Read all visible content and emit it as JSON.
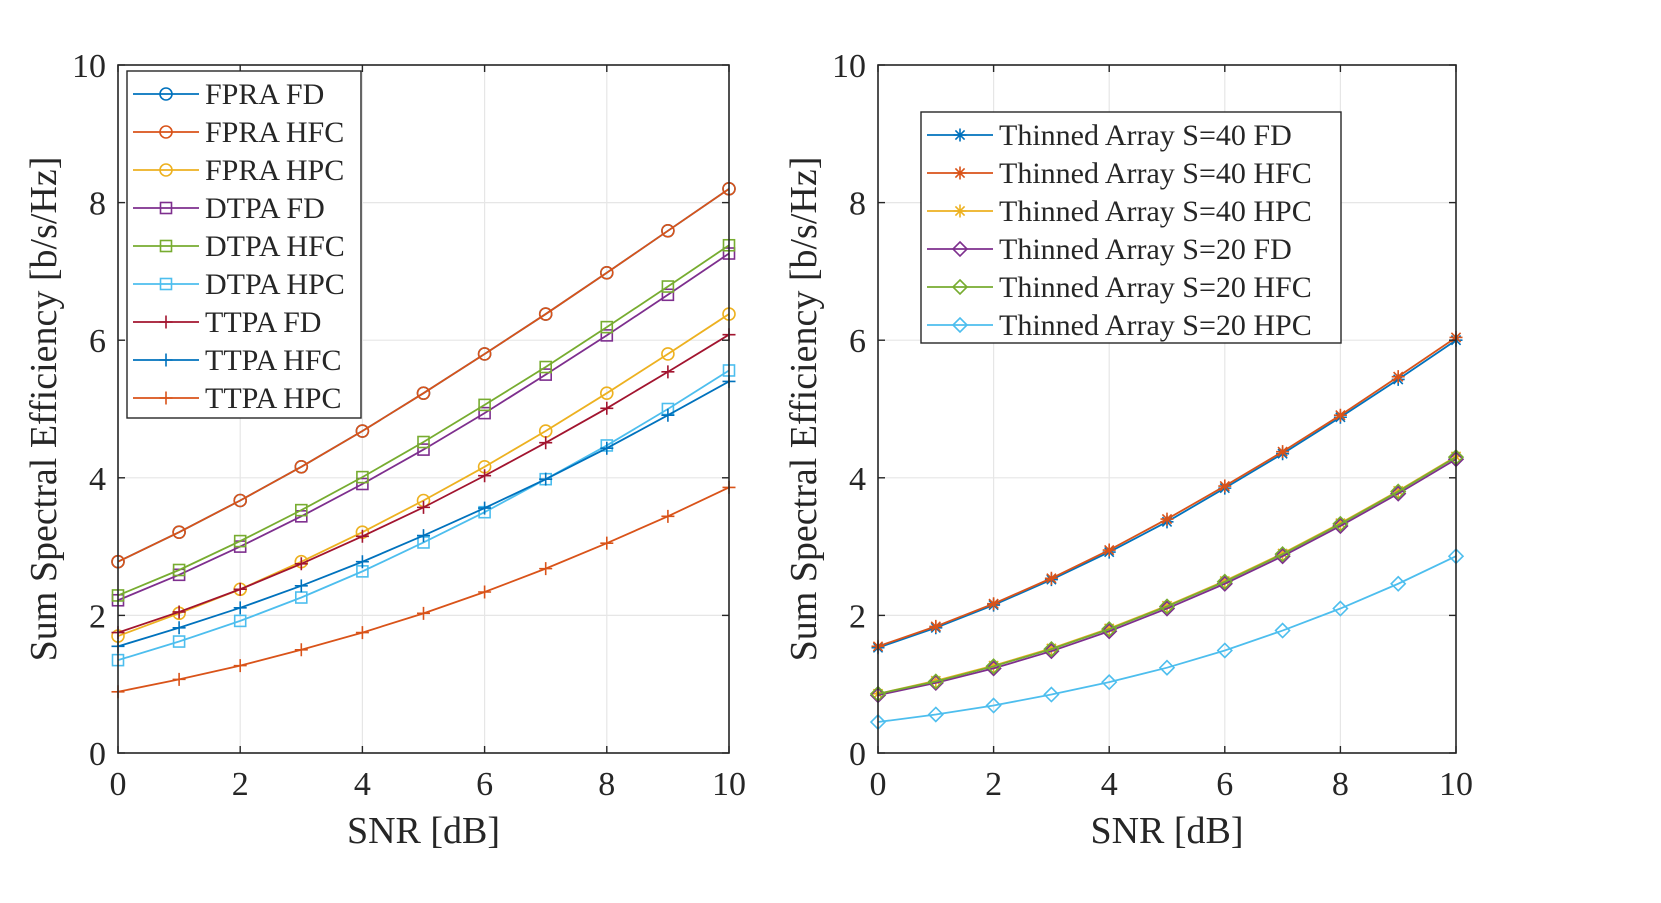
{
  "colors": {
    "blue": "#0072BD",
    "orange": "#D95319",
    "yellow": "#EDB120",
    "purple": "#7E2F8E",
    "green": "#77AC30",
    "cyan": "#4DBEEE",
    "maroon": "#A2142F",
    "grid": "#e6e6e6",
    "axis": "#262626"
  },
  "chart_data": [
    {
      "type": "line",
      "xlabel": "SNR [dB]",
      "ylabel": "Sum Spectral Efficiency [b/s/Hz]",
      "xlim": [
        0,
        10
      ],
      "ylim": [
        0,
        10
      ],
      "xticks": [
        0,
        2,
        4,
        6,
        8,
        10
      ],
      "yticks": [
        0,
        2,
        4,
        6,
        8,
        10
      ],
      "grid": true,
      "legend_position": "top-left",
      "x": [
        0,
        1,
        2,
        3,
        4,
        5,
        6,
        7,
        8,
        9,
        10
      ],
      "series": [
        {
          "name": "FPRA FD",
          "color": "blue",
          "marker": "circle",
          "values": [
            2.78,
            3.21,
            3.67,
            4.16,
            4.68,
            5.23,
            5.8,
            6.38,
            6.98,
            7.59,
            8.2
          ]
        },
        {
          "name": "FPRA HFC",
          "color": "orange",
          "marker": "circle",
          "values": [
            2.78,
            3.21,
            3.67,
            4.16,
            4.68,
            5.23,
            5.8,
            6.38,
            6.98,
            7.59,
            8.2
          ]
        },
        {
          "name": "FPRA HPC",
          "color": "yellow",
          "marker": "circle",
          "values": [
            1.7,
            2.03,
            2.38,
            2.78,
            3.21,
            3.67,
            4.16,
            4.68,
            5.23,
            5.8,
            6.38
          ]
        },
        {
          "name": "DTPA FD",
          "color": "purple",
          "marker": "square",
          "values": [
            2.22,
            2.59,
            3.0,
            3.44,
            3.91,
            4.41,
            4.94,
            5.5,
            6.07,
            6.66,
            7.26
          ]
        },
        {
          "name": "DTPA HFC",
          "color": "green",
          "marker": "square",
          "values": [
            2.29,
            2.66,
            3.08,
            3.53,
            4.01,
            4.52,
            5.06,
            5.61,
            6.19,
            6.78,
            7.38
          ]
        },
        {
          "name": "DTPA HPC",
          "color": "cyan",
          "marker": "square",
          "values": [
            1.35,
            1.62,
            1.92,
            2.26,
            2.64,
            3.06,
            3.5,
            3.98,
            4.47,
            5.0,
            5.56
          ]
        },
        {
          "name": "TTPA FD",
          "color": "maroon",
          "marker": "plus",
          "values": [
            1.75,
            2.05,
            2.38,
            2.75,
            3.15,
            3.57,
            4.03,
            4.51,
            5.01,
            5.54,
            6.08
          ]
        },
        {
          "name": "TTPA HFC",
          "color": "blue",
          "marker": "plus",
          "values": [
            1.55,
            1.82,
            2.11,
            2.43,
            2.78,
            3.16,
            3.56,
            3.98,
            4.43,
            4.91,
            5.4
          ]
        },
        {
          "name": "TTPA HPC",
          "color": "orange",
          "marker": "plus",
          "values": [
            0.89,
            1.07,
            1.27,
            1.5,
            1.75,
            2.03,
            2.34,
            2.68,
            3.05,
            3.44,
            3.86
          ]
        }
      ]
    },
    {
      "type": "line",
      "xlabel": "SNR [dB]",
      "ylabel": "Sum Spectral Efficiency [b/s/Hz]",
      "xlim": [
        0,
        10
      ],
      "ylim": [
        0,
        10
      ],
      "xticks": [
        0,
        2,
        4,
        6,
        8,
        10
      ],
      "yticks": [
        0,
        2,
        4,
        6,
        8,
        10
      ],
      "grid": true,
      "legend_position": "top-left",
      "x": [
        0,
        1,
        2,
        3,
        4,
        5,
        6,
        7,
        8,
        9,
        10
      ],
      "series": [
        {
          "name": "Thinned Array S=40 FD",
          "color": "blue",
          "marker": "asterisk",
          "values": [
            1.53,
            1.82,
            2.15,
            2.52,
            2.92,
            3.36,
            3.85,
            4.35,
            4.88,
            5.43,
            6.0
          ]
        },
        {
          "name": "Thinned Array S=40 HFC",
          "color": "orange",
          "marker": "asterisk",
          "values": [
            1.55,
            1.84,
            2.17,
            2.54,
            2.95,
            3.4,
            3.88,
            4.38,
            4.91,
            5.47,
            6.04
          ]
        },
        {
          "name": "Thinned Array S=40 HPC",
          "color": "yellow",
          "marker": "asterisk",
          "values": [
            0.86,
            1.05,
            1.27,
            1.52,
            1.81,
            2.14,
            2.5,
            2.9,
            3.34,
            3.81,
            4.31
          ]
        },
        {
          "name": "Thinned Array S=20 FD",
          "color": "purple",
          "marker": "diamond",
          "values": [
            0.84,
            1.02,
            1.23,
            1.48,
            1.77,
            2.1,
            2.46,
            2.86,
            3.3,
            3.77,
            4.27
          ]
        },
        {
          "name": "Thinned Array S=20 HFC",
          "color": "green",
          "marker": "diamond",
          "values": [
            0.86,
            1.04,
            1.26,
            1.51,
            1.8,
            2.13,
            2.49,
            2.89,
            3.33,
            3.8,
            4.3
          ]
        },
        {
          "name": "Thinned Array S=20 HPC",
          "color": "cyan",
          "marker": "diamond",
          "values": [
            0.45,
            0.56,
            0.69,
            0.85,
            1.03,
            1.24,
            1.49,
            1.78,
            2.1,
            2.46,
            2.86
          ]
        }
      ]
    }
  ]
}
